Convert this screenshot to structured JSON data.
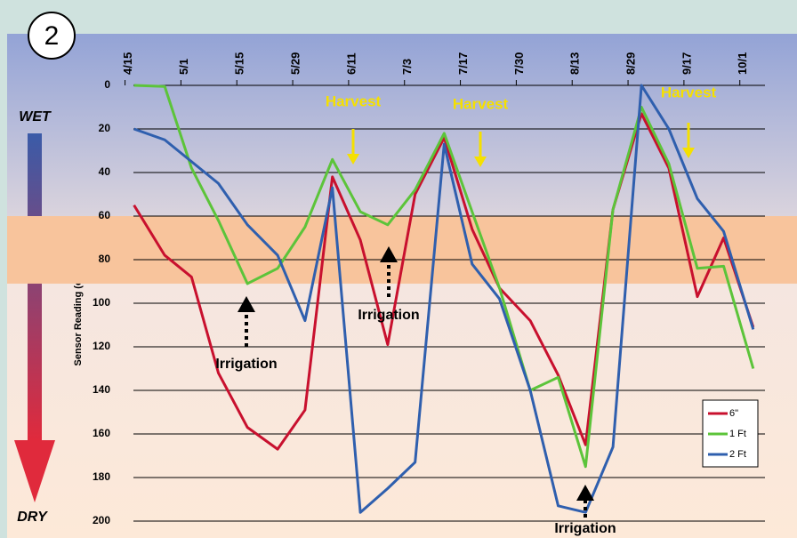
{
  "chart_data": {
    "type": "line",
    "badge": "2",
    "y_label": "Sensor Reading (centibars)",
    "scale_top": "WET",
    "scale_bottom": "DRY",
    "annotations": [
      "Harvest",
      "Harvest",
      "Harvest",
      "Irrigation",
      "Irrigation",
      "Irrigation"
    ],
    "xlim": [
      0.15,
      11.45
    ],
    "xticks": [
      {
        "value": 0,
        "label": "4/15"
      },
      {
        "value": 1,
        "label": "5/1"
      },
      {
        "value": 2,
        "label": "5/15"
      },
      {
        "value": 3,
        "label": "5/29"
      },
      {
        "value": 4,
        "label": "6/11"
      },
      {
        "value": 5,
        "label": "7/3"
      },
      {
        "value": 6,
        "label": "7/17"
      },
      {
        "value": 7,
        "label": "7/30"
      },
      {
        "value": 8,
        "label": "8/13"
      },
      {
        "value": 9,
        "label": "8/29"
      },
      {
        "value": 10,
        "label": "9/17"
      },
      {
        "value": 11,
        "label": "10/1"
      }
    ],
    "ylim": [
      0,
      200
    ],
    "yticks": [
      0,
      20,
      40,
      60,
      80,
      100,
      120,
      140,
      160,
      180,
      200
    ],
    "y_reversed": true,
    "grid": true,
    "band": [
      60,
      91
    ],
    "band_color": "#f8c49c",
    "legend": "lower right",
    "x": [
      0.16,
      0.71,
      1.19,
      1.67,
      2.19,
      2.73,
      3.22,
      3.71,
      4.21,
      4.7,
      5.19,
      5.71,
      6.21,
      6.7,
      7.25,
      7.75,
      8.24,
      8.73,
      9.24,
      9.73,
      10.24,
      10.71,
      11.24
    ],
    "series": [
      {
        "name": "6\"",
        "color": "#c8102e",
        "values": [
          55,
          78,
          88,
          132,
          157,
          167,
          149,
          42,
          71,
          119,
          50,
          24,
          66,
          93,
          108,
          133,
          165,
          57,
          13,
          38,
          97,
          70,
          111
        ]
      },
      {
        "name": "1 Ft",
        "color": "#5cc43a",
        "values": [
          0,
          0.5,
          38,
          62,
          91,
          84,
          65,
          34,
          58,
          64,
          48,
          22,
          58,
          93,
          140,
          134,
          175,
          57,
          10,
          36,
          84,
          83,
          130
        ]
      },
      {
        "name": "2 Ft",
        "color": "#2f5fae",
        "values": [
          20,
          25,
          35,
          45,
          64,
          78,
          108,
          47,
          196,
          185,
          173,
          27,
          82,
          98,
          140,
          193,
          196,
          166,
          0,
          20,
          52,
          67,
          112
        ]
      }
    ]
  }
}
